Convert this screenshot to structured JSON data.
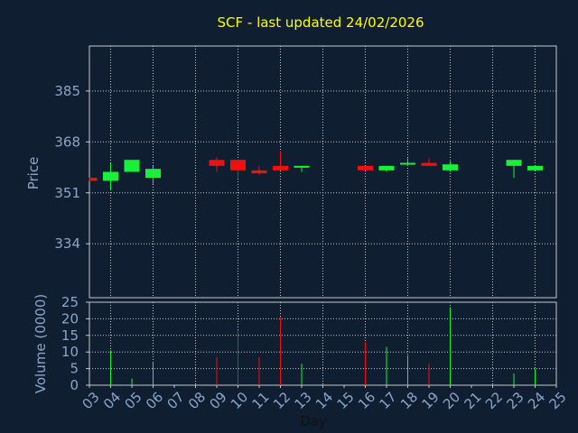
{
  "chart_data": [
    {
      "type": "candlestick",
      "title": "SCF - last updated 24/02/2026",
      "ylabel": "Price",
      "yticks": [
        334,
        351,
        368,
        385
      ],
      "ylim": [
        316,
        400
      ],
      "colors": {
        "up": "#19f03a",
        "down": "#ee1111",
        "title": "#ffff00",
        "axis_text": "#8aa6c8",
        "grid": "#c8c8c8",
        "background": "#0f1e30"
      },
      "candles": [
        {
          "day": "03",
          "open": 356.0,
          "close": 355.0,
          "high": 356.0,
          "low": 355.0
        },
        {
          "day": "04",
          "open": 355.0,
          "close": 358.0,
          "high": 361.0,
          "low": 352.0
        },
        {
          "day": "05",
          "open": 358.0,
          "close": 362.0,
          "high": 362.0,
          "low": 358.0
        },
        {
          "day": "06",
          "open": 356.0,
          "close": 359.0,
          "high": 360.0,
          "low": 354.0
        },
        {
          "day": "09",
          "open": 362.0,
          "close": 360.0,
          "high": 363.0,
          "low": 358.0
        },
        {
          "day": "10",
          "open": 362.0,
          "close": 358.5,
          "high": 362.0,
          "low": 356.0
        },
        {
          "day": "11",
          "open": 358.5,
          "close": 357.5,
          "high": 360.0,
          "low": 357.0
        },
        {
          "day": "12",
          "open": 360.0,
          "close": 358.5,
          "high": 365.0,
          "low": 358.5
        },
        {
          "day": "13",
          "open": 359.5,
          "close": 360.0,
          "high": 360.0,
          "low": 358.0
        },
        {
          "day": "16",
          "open": 360.0,
          "close": 358.5,
          "high": 360.0,
          "low": 358.5
        },
        {
          "day": "17",
          "open": 358.5,
          "close": 360.0,
          "high": 360.0,
          "low": 358.0
        },
        {
          "day": "18",
          "open": 360.5,
          "close": 361.0,
          "high": 362.5,
          "low": 360.0
        },
        {
          "day": "19",
          "open": 361.0,
          "close": 360.0,
          "high": 362.5,
          "low": 360.0
        },
        {
          "day": "20",
          "open": 358.5,
          "close": 360.5,
          "high": 361.5,
          "low": 358.0
        },
        {
          "day": "23",
          "open": 360.0,
          "close": 362.0,
          "high": 362.0,
          "low": 356.0
        },
        {
          "day": "24",
          "open": 358.5,
          "close": 360.0,
          "high": 360.0,
          "low": 358.5
        }
      ]
    },
    {
      "type": "bar",
      "ylabel": "Volume (0000)",
      "xlabel": "Day",
      "yticks": [
        0,
        5,
        10,
        15,
        20,
        25
      ],
      "ylim": [
        0,
        25
      ],
      "categories": [
        "03",
        "04",
        "05",
        "06",
        "07",
        "08",
        "09",
        "10",
        "11",
        "12",
        "13",
        "14",
        "15",
        "16",
        "17",
        "18",
        "19",
        "20",
        "21",
        "22",
        "23",
        "24",
        "25"
      ],
      "bars": [
        {
          "day": "04",
          "value": 10.5,
          "direction": "up"
        },
        {
          "day": "05",
          "value": 2.0,
          "direction": "up"
        },
        {
          "day": "06",
          "value": 7.0,
          "direction": "up"
        },
        {
          "day": "09",
          "value": 8.5,
          "direction": "down"
        },
        {
          "day": "10",
          "value": 16.5,
          "direction": "down"
        },
        {
          "day": "11",
          "value": 8.5,
          "direction": "down"
        },
        {
          "day": "12",
          "value": 20.5,
          "direction": "down"
        },
        {
          "day": "13",
          "value": 6.5,
          "direction": "up"
        },
        {
          "day": "16",
          "value": 13.0,
          "direction": "down"
        },
        {
          "day": "17",
          "value": 11.5,
          "direction": "up"
        },
        {
          "day": "18",
          "value": 9.0,
          "direction": "up"
        },
        {
          "day": "19",
          "value": 6.5,
          "direction": "down"
        },
        {
          "day": "20",
          "value": 23.5,
          "direction": "up"
        },
        {
          "day": "23",
          "value": 3.5,
          "direction": "up"
        },
        {
          "day": "24",
          "value": 5.0,
          "direction": "up"
        }
      ]
    }
  ]
}
